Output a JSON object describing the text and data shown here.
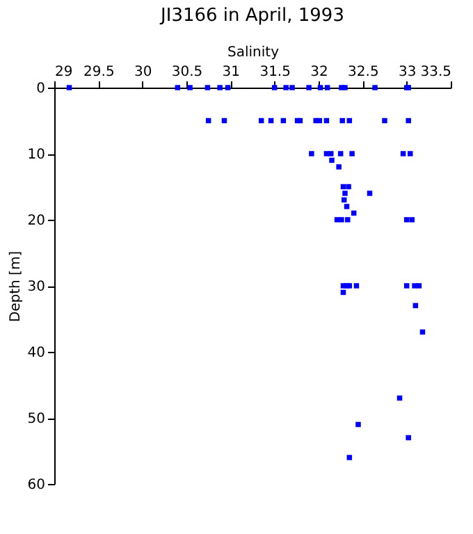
{
  "chart_data": {
    "type": "scatter",
    "title": "JI3166 in April, 1993",
    "xlabel": "Salinity",
    "ylabel": "Depth [m]",
    "xlim": [
      29,
      33.5
    ],
    "xticks": [
      29,
      29.5,
      30,
      30.5,
      31,
      31.5,
      32,
      32.5,
      33,
      33.5
    ],
    "ylim": [
      60,
      0
    ],
    "yticks": [
      0,
      10,
      20,
      30,
      40,
      50,
      60
    ],
    "grid": false,
    "legend": false,
    "marker": "square",
    "series": [
      {
        "color": "#0000ff",
        "x": [
          29.17,
          30.4,
          30.54,
          30.74,
          30.88,
          30.97,
          31.5,
          31.63,
          31.7,
          31.89,
          32.02,
          32.1,
          32.26,
          32.3,
          32.64,
          33.0,
          33.02,
          30.75,
          30.93,
          31.35,
          31.46,
          31.6,
          31.76,
          31.79,
          31.97,
          32.01,
          32.09,
          32.27,
          32.35,
          32.75,
          33.02,
          31.92,
          32.09,
          32.14,
          32.25,
          32.38,
          32.96,
          33.04,
          32.15,
          32.23,
          32.28,
          32.34,
          32.3,
          32.58,
          32.29,
          32.32,
          32.4,
          32.21,
          32.26,
          32.33,
          33.0,
          33.06,
          32.28,
          32.32,
          32.35,
          32.43,
          33.0,
          33.09,
          33.14,
          32.28,
          33.1,
          33.18,
          32.92,
          32.45,
          33.02,
          32.35
        ],
        "values": [
          0,
          0,
          0,
          0,
          0,
          0,
          0,
          0,
          0,
          0,
          0,
          0,
          0,
          0,
          0,
          0,
          0,
          5,
          5,
          5,
          5,
          5,
          5,
          5,
          5,
          5,
          5,
          5,
          5,
          5,
          5,
          10,
          10,
          10,
          10,
          10,
          10,
          10,
          11,
          12,
          15,
          15,
          16,
          16,
          17,
          18,
          19,
          20,
          20,
          20,
          20,
          20,
          30,
          30,
          30,
          30,
          30,
          30,
          30,
          31,
          33,
          37,
          47,
          51,
          53,
          56
        ]
      }
    ]
  }
}
